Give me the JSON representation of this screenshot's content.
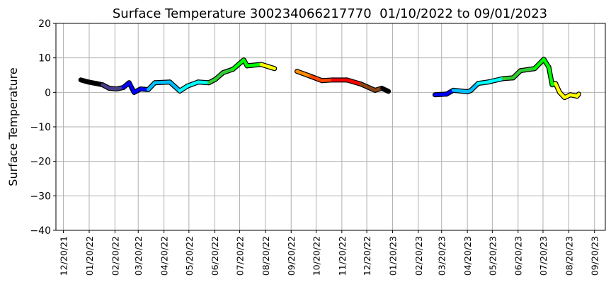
{
  "chart_data": {
    "type": "line",
    "title": "Surface Temperature 300234066217770  01/10/2022 to 09/01/2023",
    "xlabel": "",
    "ylabel": "Surface Temperature",
    "ylim": [
      -40,
      20
    ],
    "xlim": [
      "2021-12-11",
      "2023-10-03"
    ],
    "grid": true,
    "yticks": [
      20,
      10,
      0,
      -10,
      -20,
      -30,
      -40
    ],
    "yticklabels": [
      "20",
      "10",
      "0",
      "−10",
      "−20",
      "−30",
      "−40"
    ],
    "xticks": [
      "2021-12-20",
      "2022-01-20",
      "2022-02-20",
      "2022-03-20",
      "2022-04-20",
      "2022-05-20",
      "2022-06-20",
      "2022-07-20",
      "2022-08-20",
      "2022-09-20",
      "2022-10-20",
      "2022-11-20",
      "2022-12-20",
      "2023-01-20",
      "2023-02-20",
      "2023-03-20",
      "2023-04-20",
      "2023-05-20",
      "2023-06-20",
      "2023-07-20",
      "2023-08-20",
      "2023-09-20"
    ],
    "xticklabels": [
      "12/20/21",
      "01/20/22",
      "02/20/22",
      "03/20/22",
      "04/20/22",
      "05/20/22",
      "06/20/22",
      "07/20/22",
      "08/20/22",
      "09/20/22",
      "10/20/22",
      "11/20/22",
      "12/20/22",
      "01/20/23",
      "02/20/23",
      "03/20/23",
      "04/20/23",
      "05/20/23",
      "06/20/23",
      "07/20/23",
      "08/20/23",
      "09/20/23"
    ],
    "month_colors": [
      "#000000",
      "#483d8b",
      "#0000ff",
      "#00bfff",
      "#00ffff",
      "#32cd32",
      "#00ff00",
      "#ffff00",
      "#ff8c00",
      "#ff4500",
      "#ff0000",
      "#8b4513"
    ],
    "points": [
      [
        "2022-01-10",
        3.6
      ],
      [
        "2022-01-19",
        3.0
      ],
      [
        "2022-01-28",
        2.6
      ],
      [
        "2022-02-05",
        2.2
      ],
      [
        "2022-02-13",
        1.2
      ],
      [
        "2022-02-22",
        1.0
      ],
      [
        "2022-03-02",
        1.4
      ],
      [
        "2022-03-09",
        2.8
      ],
      [
        "2022-03-15",
        0.0
      ],
      [
        "2022-03-23",
        1.0
      ],
      [
        "2022-04-01",
        0.8
      ],
      [
        "2022-04-09",
        2.8
      ],
      [
        "2022-04-27",
        3.0
      ],
      [
        "2022-05-09",
        0.4
      ],
      [
        "2022-05-18",
        1.8
      ],
      [
        "2022-05-31",
        3.0
      ],
      [
        "2022-06-13",
        2.8
      ],
      [
        "2022-06-21",
        3.8
      ],
      [
        "2022-06-30",
        5.7
      ],
      [
        "2022-07-12",
        6.7
      ],
      [
        "2022-07-25",
        9.4
      ],
      [
        "2022-07-29",
        7.7
      ],
      [
        "2022-08-15",
        8.1
      ],
      [
        "2022-08-31",
        6.9
      ],
      [
        "2022-09-27",
        6.1
      ],
      [
        "2022-10-14",
        4.6
      ],
      [
        "2022-10-27",
        3.4
      ],
      [
        "2022-11-09",
        3.6
      ],
      [
        "2022-11-26",
        3.6
      ],
      [
        "2022-12-13",
        2.4
      ],
      [
        "2022-12-30",
        0.6
      ],
      [
        "2023-01-07",
        1.2
      ],
      [
        "2023-01-15",
        0.3
      ],
      [
        "2023-03-12",
        -0.7
      ],
      [
        "2023-03-26",
        -0.5
      ],
      [
        "2023-04-03",
        0.6
      ],
      [
        "2023-04-20",
        0.2
      ],
      [
        "2023-04-24",
        0.5
      ],
      [
        "2023-05-03",
        2.6
      ],
      [
        "2023-05-15",
        3.0
      ],
      [
        "2023-06-02",
        4.0
      ],
      [
        "2023-06-14",
        4.2
      ],
      [
        "2023-06-23",
        6.3
      ],
      [
        "2023-07-10",
        6.9
      ],
      [
        "2023-07-21",
        9.6
      ],
      [
        "2023-07-27",
        7.3
      ],
      [
        "2023-07-31",
        2.2
      ],
      [
        "2023-08-04",
        2.6
      ],
      [
        "2023-08-09",
        0.0
      ],
      [
        "2023-08-15",
        -1.5
      ],
      [
        "2023-08-22",
        -0.7
      ],
      [
        "2023-08-30",
        -1.1
      ],
      [
        "2023-09-01",
        -0.5
      ]
    ]
  }
}
